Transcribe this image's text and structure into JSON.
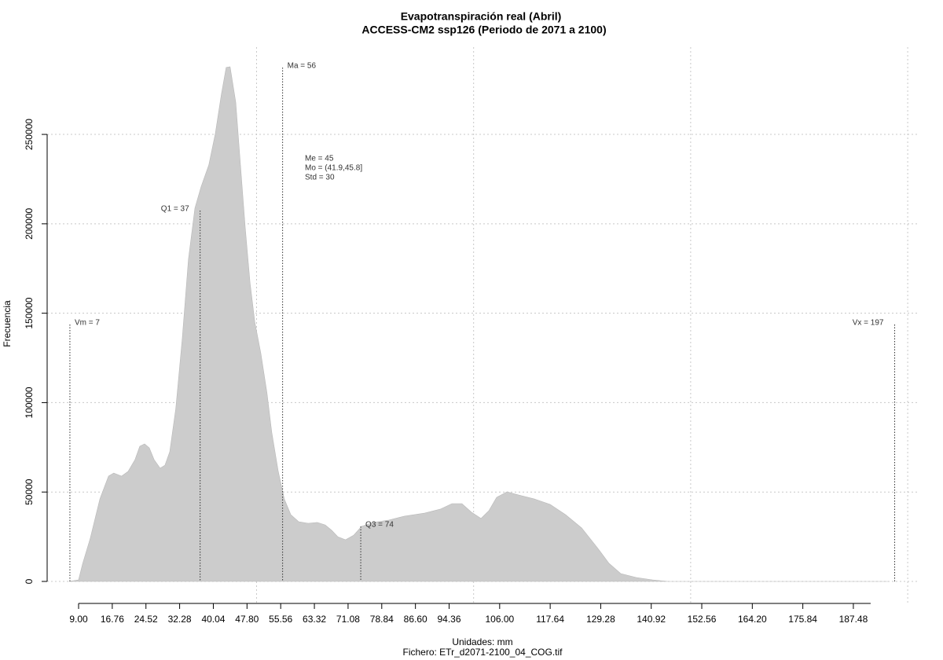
{
  "chart_data": {
    "type": "area",
    "title": "Evapotranspiración real (Abril)",
    "subtitle": "ACCESS-CM2 ssp126 (Periodo de 2071 a 2100)",
    "x_label": "Unidades: mm",
    "caption": "Fichero: ETr_d2071-2100_04_COG.tif",
    "y_label": "Frecuencia",
    "color": "#cccccc",
    "x": [
      6.8,
      9.0,
      9.9,
      11.7,
      13.9,
      15.9,
      17.1,
      18.9,
      20.4,
      22.0,
      23.1,
      24.2,
      25.3,
      26.4,
      27.8,
      28.9,
      30.0,
      31.4,
      32.9,
      34.3,
      35.8,
      37.2,
      39.0,
      40.5,
      41.9,
      43.0,
      43.9,
      45.2,
      46.3,
      47.4,
      48.5,
      49.6,
      51.0,
      52.4,
      53.5,
      55.0,
      56.4,
      57.9,
      59.7,
      61.9,
      64.0,
      65.8,
      67.3,
      68.7,
      70.5,
      72.4,
      74.2,
      76.9,
      80.5,
      84.1,
      88.7,
      92.3,
      95.0,
      97.3,
      99.5,
      101.7,
      103.5,
      105.3,
      107.7,
      110.4,
      114.0,
      117.6,
      121.2,
      124.9,
      128.5,
      131.2,
      133.9,
      137.5,
      141.2,
      144.8,
      195.5
    ],
    "values": [
      0,
      900,
      9700,
      24200,
      46100,
      58900,
      60600,
      58900,
      61500,
      68100,
      75600,
      76900,
      74700,
      68100,
      63300,
      65000,
      72500,
      96700,
      136200,
      180200,
      208700,
      220600,
      232900,
      250500,
      272400,
      287400,
      287800,
      268000,
      232900,
      197700,
      167000,
      145000,
      127400,
      105500,
      83500,
      61500,
      46100,
      37300,
      33400,
      32500,
      33000,
      31600,
      28600,
      25000,
      23300,
      25900,
      30800,
      33000,
      34300,
      36500,
      38200,
      40400,
      43500,
      43500,
      38700,
      35200,
      39500,
      47000,
      50100,
      48300,
      46100,
      43100,
      37300,
      29900,
      18900,
      10100,
      4400,
      2200,
      900,
      0,
      0
    ],
    "xlim": [
      1.76,
      202.7
    ],
    "ylim": [
      -12300,
      298800
    ],
    "xticks": [
      {
        "value": 9,
        "label": "9.00"
      },
      16.76,
      24.52,
      32.28,
      40.04,
      {
        "value": 47.8,
        "label": "47.80"
      },
      55.56,
      63.32,
      71.08,
      78.84,
      {
        "value": 86.6,
        "label": "86.60"
      },
      94.36,
      {
        "value": 106,
        "label": "106.00"
      },
      117.64,
      129.28,
      140.92,
      152.56,
      {
        "value": 164.2,
        "label": "164.20"
      },
      175.84,
      187.48
    ],
    "yticks": [
      0,
      50000,
      100000,
      150000,
      200000,
      250000
    ],
    "xgrid": [
      50,
      100,
      150,
      200
    ],
    "grid": true,
    "annotations": [
      {
        "label": "Vm = 7",
        "value": 7
      },
      {
        "label": "Q1 = 37",
        "value": 37
      },
      {
        "label": "Ma = 56",
        "value": 56
      },
      {
        "label": "Q3 = 74",
        "value": 74
      },
      {
        "label": "Vx = 197",
        "value": 197
      }
    ],
    "stats": [
      "Me = 45",
      "Mo = (41.9,45.8]",
      "Std = 30"
    ]
  }
}
